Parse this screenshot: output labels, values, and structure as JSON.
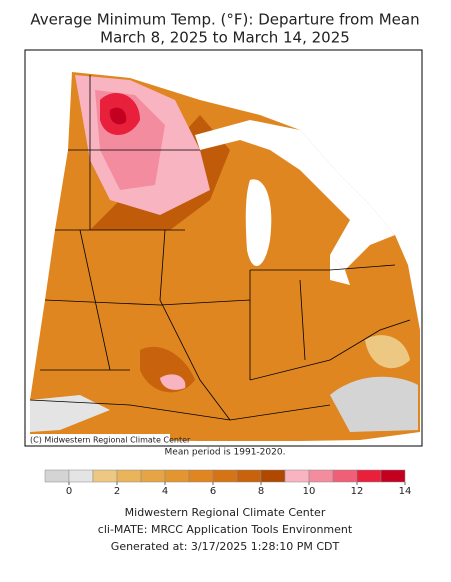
{
  "title": [
    "Average Minimum Temp. (°F): Departure from Mean",
    "March 8, 2025 to March 14, 2025"
  ],
  "credit": "(C) Midwestern Regional Climate Center",
  "mean_period": "Mean period is 1991-2020.",
  "legend": {
    "bins": [
      -1,
      0,
      1,
      2,
      3,
      4,
      5,
      6,
      7,
      8,
      9,
      10,
      11,
      12,
      13,
      14
    ],
    "colors": [
      "#d4d4d4",
      "#e4e4e4",
      "#edc882",
      "#e9b45a",
      "#e6a444",
      "#e39530",
      "#df8620",
      "#d57414",
      "#c8620c",
      "#b04800",
      "#f8b4c0",
      "#f48ca0",
      "#ef6078",
      "#e8203c",
      "#c40020"
    ],
    "ticks": [
      0,
      2,
      4,
      6,
      8,
      10,
      12,
      14
    ]
  },
  "footer": [
    "Midwestern Regional Climate Center",
    "cli-MATE: MRCC Application Tools Environment",
    "Generated at: 3/17/2025 1:28:10 PM CDT"
  ]
}
